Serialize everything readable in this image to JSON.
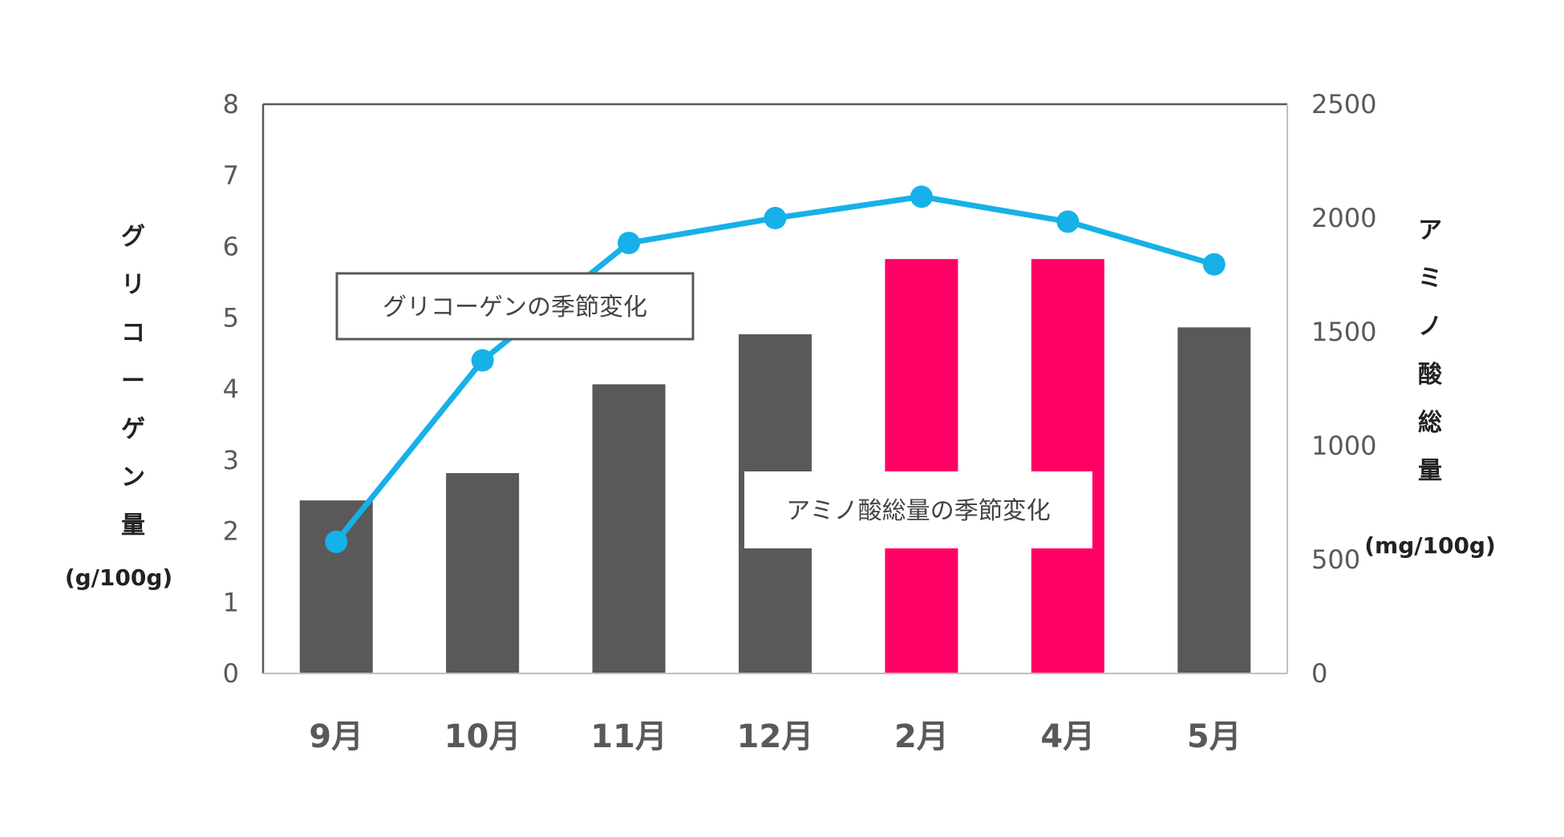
{
  "colors": {
    "bar_default": "#595959",
    "bar_highlight": "#ff0066",
    "line": "#16b1e8",
    "frame": "#595959",
    "baseline": "#bfbfbf"
  },
  "chart_data": {
    "type": "bar+line",
    "categories": [
      "9月",
      "10月",
      "11月",
      "12月",
      "2月",
      "4月",
      "5月"
    ],
    "series": [
      {
        "name": "アミノ酸総量",
        "kind": "bar",
        "axis": "right",
        "values": [
          760,
          880,
          1270,
          1490,
          1820,
          1820,
          1520
        ],
        "highlight": [
          false,
          false,
          false,
          false,
          true,
          true,
          false
        ]
      },
      {
        "name": "グリコーゲン量",
        "kind": "line",
        "axis": "left",
        "values": [
          1.85,
          4.4,
          6.05,
          6.4,
          6.7,
          6.35,
          5.75
        ]
      }
    ],
    "left_axis": {
      "title": "グリコーゲン量",
      "title_chars": [
        "グ",
        "リ",
        "コ",
        "ー",
        "ゲ",
        "ン",
        "量"
      ],
      "unit": "(g/100g)",
      "range": [
        0,
        8
      ],
      "ticks": [
        "0",
        "1",
        "2",
        "3",
        "4",
        "5",
        "6",
        "7",
        "8"
      ]
    },
    "right_axis": {
      "title": "アミノ酸総量",
      "title_chars": [
        "ア",
        "ミ",
        "ノ",
        "酸",
        "総",
        "量"
      ],
      "unit": "(mg/100g)",
      "range": [
        0,
        2500
      ],
      "ticks": [
        "0",
        "500",
        "1000",
        "1500",
        "2000",
        "2500"
      ]
    },
    "annotations": [
      {
        "text": "グリコーゲンの季節変化",
        "target": "line"
      },
      {
        "text": "アミノ酸総量の季節変化",
        "target": "bar"
      }
    ]
  }
}
